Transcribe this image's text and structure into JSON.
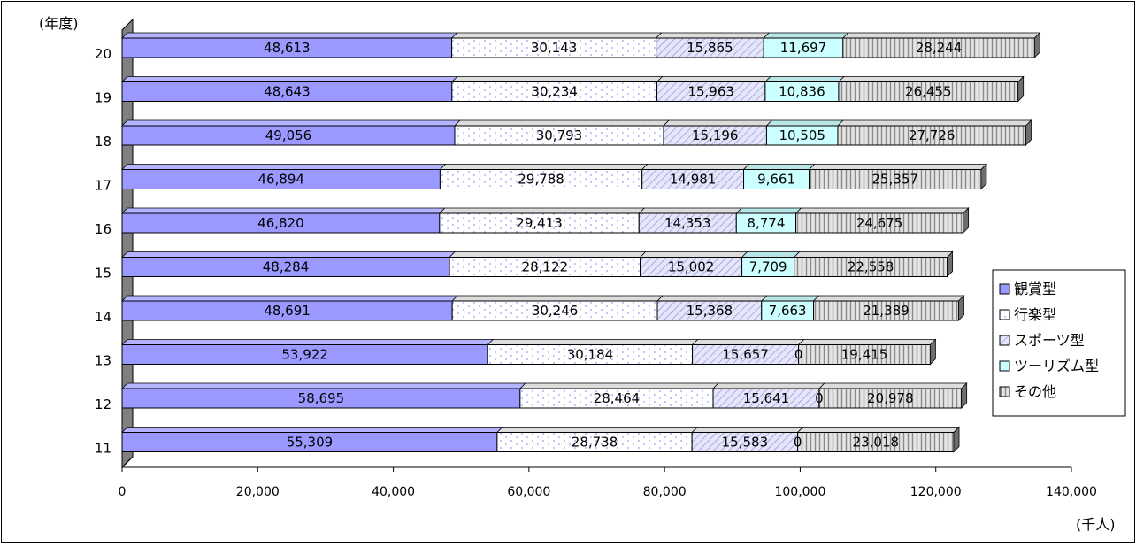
{
  "chart_data": {
    "type": "bar",
    "orientation": "horizontal",
    "stacked": true,
    "y_unit_label": "(年度)",
    "x_unit_label": "(千人)",
    "xlim": [
      0,
      140000
    ],
    "x_ticks": [
      0,
      20000,
      40000,
      60000,
      80000,
      100000,
      120000,
      140000
    ],
    "x_tick_labels": [
      "0",
      "20,000",
      "40,000",
      "60,000",
      "80,000",
      "100,000",
      "120,000",
      "140,000"
    ],
    "categories": [
      "20",
      "19",
      "18",
      "17",
      "16",
      "15",
      "14",
      "13",
      "12",
      "11"
    ],
    "legend_position": "right",
    "series": [
      {
        "name": "観賞型",
        "pattern": "solid",
        "color": "#9999FF",
        "values": [
          48613,
          48643,
          49056,
          46894,
          46820,
          48284,
          48691,
          53922,
          58695,
          55309
        ],
        "labels": [
          "48,613",
          "48,643",
          "49,056",
          "46,894",
          "46,820",
          "48,284",
          "48,691",
          "53,922",
          "58,695",
          "55,309"
        ]
      },
      {
        "name": "行楽型",
        "pattern": "dots",
        "color": "#FFFFFF",
        "values": [
          30143,
          30234,
          30793,
          29788,
          29413,
          28122,
          30246,
          30184,
          28464,
          28738
        ],
        "labels": [
          "30,143",
          "30,234",
          "30,793",
          "29,788",
          "29,413",
          "28,122",
          "30,246",
          "30,184",
          "28,464",
          "28,738"
        ]
      },
      {
        "name": "スポーツ型",
        "pattern": "diagonal",
        "color": "#BFBFEF",
        "values": [
          15865,
          15963,
          15196,
          14981,
          14353,
          15002,
          15368,
          15657,
          15641,
          15583
        ],
        "labels": [
          "15,865",
          "15,963",
          "15,196",
          "14,981",
          "14,353",
          "15,002",
          "15,368",
          "15,657",
          "15,641",
          "15,583"
        ]
      },
      {
        "name": "ツーリズム型",
        "pattern": "solid",
        "color": "#CCFFFF",
        "values": [
          11697,
          10836,
          10505,
          9661,
          8774,
          7709,
          7663,
          0,
          0,
          0
        ],
        "labels": [
          "11,697",
          "10,836",
          "10,505",
          "9,661",
          "8,774",
          "7,709",
          "7,663",
          "0",
          "0",
          "0"
        ]
      },
      {
        "name": "その他",
        "pattern": "vertical",
        "color": "#D0D0D0",
        "values": [
          28244,
          26455,
          27726,
          25357,
          24675,
          22558,
          21389,
          19415,
          20978,
          23018
        ],
        "labels": [
          "28,244",
          "26,455",
          "27,726",
          "25,357",
          "24,675",
          "22,558",
          "21,389",
          "19,415",
          "20,978",
          "23,018"
        ]
      }
    ]
  }
}
